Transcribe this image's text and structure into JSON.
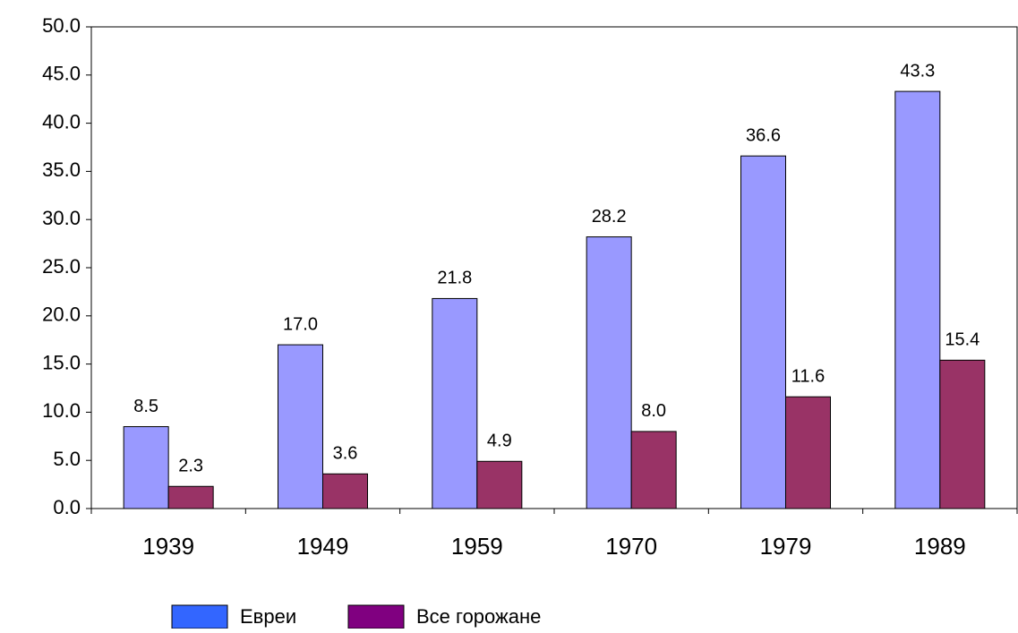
{
  "chart_data": {
    "type": "bar",
    "categories": [
      "1939",
      "1949",
      "1959",
      "1970",
      "1979",
      "1989"
    ],
    "series": [
      {
        "name": "Евреи",
        "color": "#9999ff",
        "legend_color": "#3366ff",
        "values": [
          8.5,
          17.0,
          21.8,
          28.2,
          36.6,
          43.3
        ],
        "value_labels": [
          "8.5",
          "17.0",
          "21.8",
          "28.2",
          "36.6",
          "43.3"
        ]
      },
      {
        "name": "Все горожане",
        "color": "#993366",
        "legend_color": "#800080",
        "values": [
          2.3,
          3.6,
          4.9,
          8.0,
          11.6,
          15.4
        ],
        "value_labels": [
          "2.3",
          "3.6",
          "4.9",
          "8.0",
          "11.6",
          "15.4"
        ]
      }
    ],
    "ylim": [
      0,
      50
    ],
    "yticks": [
      {
        "value": 0,
        "label": "0.0"
      },
      {
        "value": 5,
        "label": "5.0"
      },
      {
        "value": 10,
        "label": "10.0"
      },
      {
        "value": 15,
        "label": "15.0"
      },
      {
        "value": 20,
        "label": "20.0"
      },
      {
        "value": 25,
        "label": "25.0"
      },
      {
        "value": 30,
        "label": "30.0"
      },
      {
        "value": 35,
        "label": "35.0"
      },
      {
        "value": 40,
        "label": "40.0"
      },
      {
        "value": 45,
        "label": "45.0"
      },
      {
        "value": 50,
        "label": "50.0"
      }
    ],
    "grid": false
  }
}
